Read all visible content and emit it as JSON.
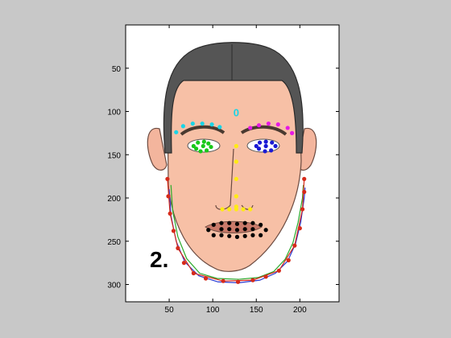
{
  "chart_data": {
    "type": "scatter",
    "background_image": "cartoon-face-illustration",
    "image_label": "2.",
    "xlabel": "",
    "ylabel": "",
    "xlim": [
      0,
      245
    ],
    "ylim": [
      0,
      320
    ],
    "y_reversed": true,
    "xticks": [
      50,
      100,
      150,
      200
    ],
    "yticks": [
      50,
      100,
      150,
      200,
      250,
      300
    ],
    "grid": false,
    "annotations": [
      {
        "text": "0",
        "x": 127,
        "y": 102,
        "color": "#19d4e6"
      }
    ],
    "series": [
      {
        "color": "#d62a1a",
        "marker": "dot",
        "role": "jaw-contour",
        "points": [
          [
            48,
            178
          ],
          [
            49,
            198
          ],
          [
            51,
            218
          ],
          [
            55,
            238
          ],
          [
            60,
            258
          ],
          [
            67,
            275
          ],
          [
            78,
            287
          ],
          [
            92,
            293
          ],
          [
            112,
            296
          ],
          [
            129,
            297
          ],
          [
            146,
            295
          ],
          [
            161,
            291
          ],
          [
            176,
            284
          ],
          [
            187,
            272
          ],
          [
            194,
            255
          ],
          [
            200,
            235
          ],
          [
            203,
            213
          ],
          [
            205,
            193
          ],
          [
            205,
            178
          ]
        ]
      },
      {
        "color": "#19d4e6",
        "marker": "dot",
        "role": "left-eyebrow",
        "points": [
          [
            58,
            124
          ],
          [
            66,
            117
          ],
          [
            77,
            114
          ],
          [
            88,
            114
          ],
          [
            99,
            115
          ],
          [
            108,
            118
          ]
        ]
      },
      {
        "color": "#e619e6",
        "marker": "dot",
        "role": "right-eyebrow",
        "points": [
          [
            143,
            119
          ],
          [
            153,
            116
          ],
          [
            164,
            114
          ],
          [
            175,
            115
          ],
          [
            186,
            119
          ],
          [
            191,
            125
          ]
        ]
      },
      {
        "color": "#19c819",
        "marker": "dot",
        "role": "left-eye",
        "points": [
          [
            78,
            140
          ],
          [
            83,
            136
          ],
          [
            90,
            135
          ],
          [
            95,
            137
          ],
          [
            98,
            141
          ],
          [
            93,
            145
          ],
          [
            86,
            146
          ],
          [
            81,
            143
          ],
          [
            89,
            140
          ]
        ]
      },
      {
        "color": "#1a1ad4",
        "marker": "dot",
        "role": "right-eye",
        "points": [
          [
            150,
            140
          ],
          [
            154,
            136
          ],
          [
            161,
            135
          ],
          [
            168,
            136
          ],
          [
            172,
            140
          ],
          [
            167,
            145
          ],
          [
            160,
            146
          ],
          [
            153,
            143
          ],
          [
            161,
            140
          ]
        ]
      },
      {
        "color": "#ffeb14",
        "marker": "dot",
        "role": "nose",
        "points": [
          [
            127,
            140
          ],
          [
            127,
            158
          ],
          [
            127,
            178
          ],
          [
            127,
            198
          ],
          [
            127,
            210
          ],
          [
            111,
            213
          ],
          [
            119,
            213
          ],
          [
            127,
            213
          ],
          [
            135,
            213
          ],
          [
            143,
            213
          ]
        ]
      },
      {
        "color": "#000000",
        "marker": "dot",
        "role": "mouth",
        "points": [
          [
            95,
            237
          ],
          [
            101,
            231
          ],
          [
            110,
            229
          ],
          [
            119,
            229
          ],
          [
            128,
            230
          ],
          [
            137,
            229
          ],
          [
            146,
            229
          ],
          [
            155,
            231
          ],
          [
            161,
            237
          ],
          [
            101,
            243
          ],
          [
            110,
            243
          ],
          [
            119,
            244
          ],
          [
            128,
            245
          ],
          [
            137,
            244
          ],
          [
            146,
            243
          ],
          [
            155,
            243
          ],
          [
            110,
            236
          ],
          [
            119,
            236
          ],
          [
            128,
            237
          ],
          [
            137,
            236
          ],
          [
            146,
            236
          ]
        ]
      }
    ],
    "curves": [
      {
        "color": "#2aaa2a",
        "role": "fitted-jaw-curve-1",
        "points": [
          [
            52,
            185
          ],
          [
            54,
            215
          ],
          [
            60,
            245
          ],
          [
            70,
            270
          ],
          [
            85,
            287
          ],
          [
            105,
            293
          ],
          [
            130,
            294
          ],
          [
            152,
            292
          ],
          [
            170,
            285
          ],
          [
            183,
            271
          ],
          [
            192,
            252
          ],
          [
            198,
            228
          ],
          [
            203,
            200
          ],
          [
            204,
            185
          ]
        ]
      },
      {
        "color": "#2a3ad4",
        "role": "fitted-jaw-curve-2",
        "points": [
          [
            50,
            190
          ],
          [
            52,
            220
          ],
          [
            58,
            250
          ],
          [
            68,
            274
          ],
          [
            84,
            290
          ],
          [
            106,
            297
          ],
          [
            130,
            298
          ],
          [
            154,
            295
          ],
          [
            172,
            287
          ],
          [
            186,
            273
          ],
          [
            195,
            253
          ],
          [
            201,
            228
          ],
          [
            205,
            200
          ],
          [
            206,
            188
          ]
        ]
      },
      {
        "color": "#d62a1a",
        "role": "fitted-jaw-curve-3",
        "points": [
          [
            48,
            178
          ],
          [
            51,
            218
          ],
          [
            60,
            258
          ],
          [
            78,
            287
          ],
          [
            112,
            296
          ],
          [
            146,
            295
          ],
          [
            176,
            284
          ],
          [
            194,
            255
          ],
          [
            203,
            213
          ],
          [
            205,
            178
          ]
        ]
      }
    ]
  }
}
